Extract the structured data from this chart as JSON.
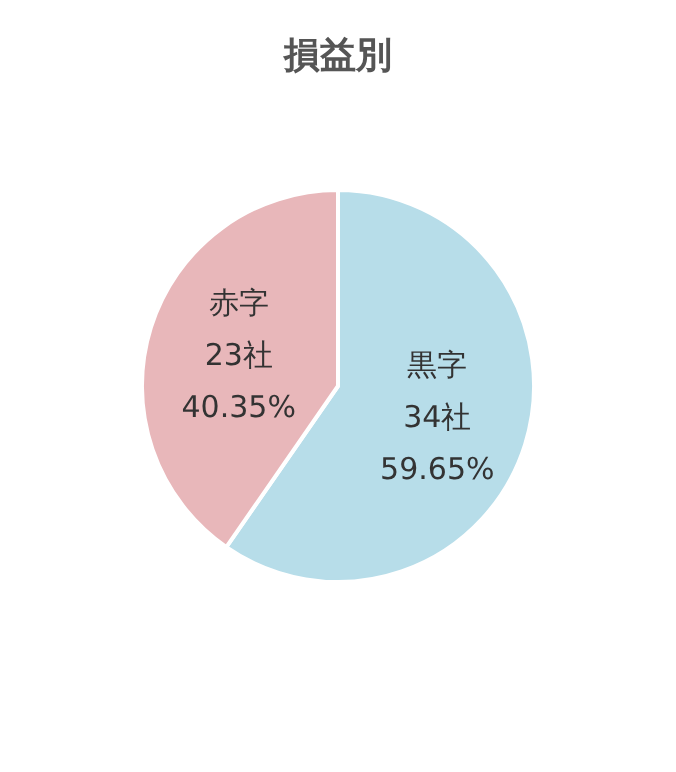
{
  "chart_data": {
    "type": "pie",
    "title": "損益別",
    "categories": [
      "黒字",
      "赤字"
    ],
    "values": [
      34,
      23
    ],
    "colors": [
      "#b7dde9",
      "#e8b7ba"
    ],
    "value_labels": [
      "34社\n59.65%",
      "23社\n40.35%"
    ],
    "legend": false
  }
}
